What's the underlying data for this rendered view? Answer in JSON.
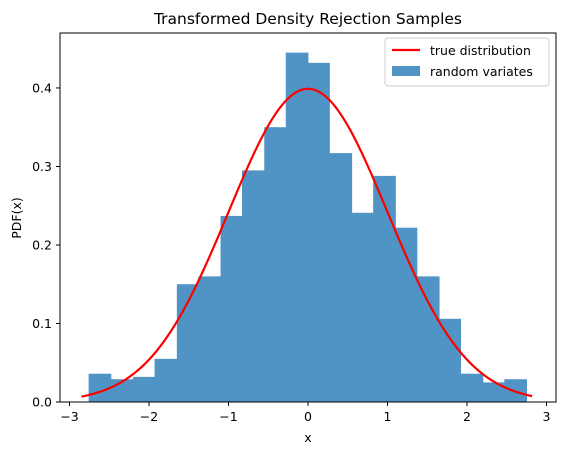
{
  "chart_data": {
    "type": "bar",
    "title": "Transformed Density Rejection Samples",
    "xlabel": "x",
    "ylabel": "PDF(x)",
    "xlim": [
      -3.12,
      3.12
    ],
    "ylim": [
      0,
      0.47
    ],
    "xticks": [
      -3,
      -2,
      -1,
      0,
      1,
      2,
      3
    ],
    "xtick_labels": [
      "−3",
      "−2",
      "−1",
      "0",
      "1",
      "2",
      "3"
    ],
    "yticks": [
      0.0,
      0.1,
      0.2,
      0.3,
      0.4
    ],
    "ytick_labels": [
      "0.0",
      "0.1",
      "0.2",
      "0.3",
      "0.4"
    ],
    "grid": false,
    "legend_position": "top-right",
    "histogram": {
      "name": "random variates",
      "color": "#4f94c5",
      "bin_edges": [
        -2.76,
        -2.48,
        -2.2,
        -1.93,
        -1.65,
        -1.38,
        -1.1,
        -0.83,
        -0.55,
        -0.28,
        0.0,
        0.27,
        0.55,
        0.82,
        1.1,
        1.37,
        1.65,
        1.92,
        2.2,
        2.47,
        2.75
      ],
      "values": [
        0.036,
        0.029,
        0.032,
        0.055,
        0.15,
        0.16,
        0.237,
        0.295,
        0.35,
        0.445,
        0.432,
        0.317,
        0.241,
        0.288,
        0.222,
        0.16,
        0.106,
        0.036,
        0.025,
        0.029
      ]
    },
    "curve": {
      "name": "true distribution",
      "color": "#ff0000",
      "x_range": [
        -2.85,
        2.82
      ],
      "function": "standard normal PDF",
      "peak": 0.399
    }
  }
}
